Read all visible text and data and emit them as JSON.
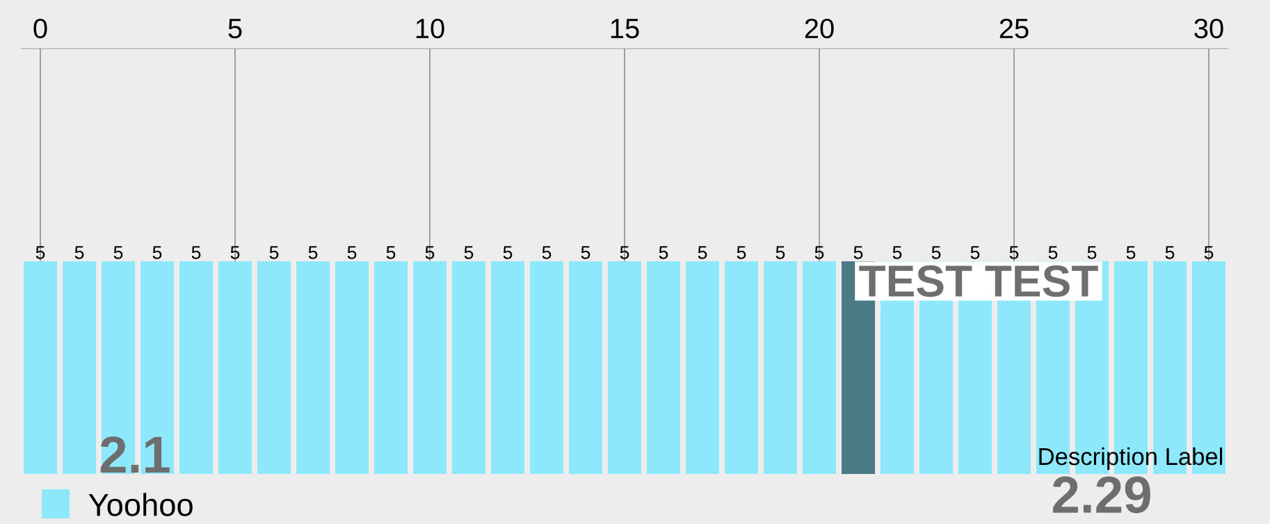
{
  "chart_data": {
    "type": "bar",
    "x": [
      0,
      1,
      2,
      3,
      4,
      5,
      6,
      7,
      8,
      9,
      10,
      11,
      12,
      13,
      14,
      15,
      16,
      17,
      18,
      19,
      20,
      21,
      22,
      23,
      24,
      25,
      26,
      27,
      28,
      29,
      30
    ],
    "series": [
      {
        "name": "Yoohoo",
        "color": "#8ee8fb",
        "values": [
          5,
          5,
          5,
          5,
          5,
          5,
          5,
          5,
          5,
          5,
          5,
          5,
          5,
          5,
          5,
          5,
          5,
          5,
          5,
          5,
          5,
          5,
          5,
          5,
          5,
          5,
          5,
          5,
          5,
          5,
          5
        ],
        "colors": [
          "#8ee8fb",
          "#8ee8fb",
          "#8ee8fb",
          "#8ee8fb",
          "#8ee8fb",
          "#8ee8fb",
          "#8ee8fb",
          "#8ee8fb",
          "#8ee8fb",
          "#8ee8fb",
          "#8ee8fb",
          "#8ee8fb",
          "#8ee8fb",
          "#8ee8fb",
          "#8ee8fb",
          "#8ee8fb",
          "#8ee8fb",
          "#8ee8fb",
          "#8ee8fb",
          "#8ee8fb",
          "#8ee8fb",
          "#4a7a84",
          "#8ee8fb",
          "#8ee8fb",
          "#8ee8fb",
          "#8ee8fb",
          "#8ee8fb",
          "#8ee8fb",
          "#8ee8fb",
          "#8ee8fb",
          "#8ee8fb"
        ]
      }
    ],
    "xlim": [
      -0.5,
      30.5
    ],
    "xticks": [
      0,
      5,
      10,
      15,
      20,
      25,
      30
    ],
    "ylim": [
      0,
      10
    ],
    "tick_labels": "x",
    "grid": "x",
    "data_labels": true,
    "legend": "bottom left",
    "annotations": [
      {
        "text": "TEST TEST",
        "x": 21,
        "y": 5
      },
      "2.1",
      "2.29",
      "Description Label"
    ]
  }
}
